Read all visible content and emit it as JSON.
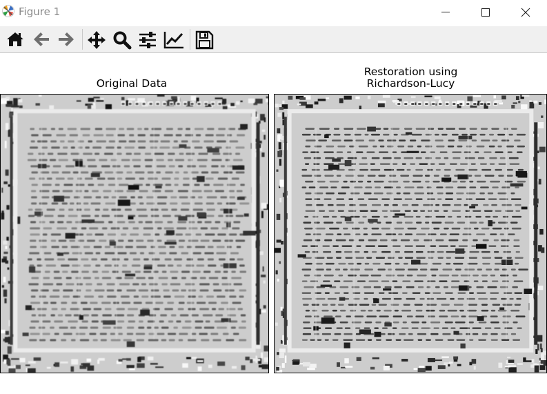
{
  "window": {
    "title": "Figure 1",
    "app_icon": "matplotlib-logo-icon",
    "controls": [
      "minimize-icon",
      "maximize-icon",
      "close-icon"
    ]
  },
  "toolbar": {
    "tools": [
      {
        "name": "Home",
        "icon": "home-icon"
      },
      {
        "name": "Back",
        "icon": "arrow-left-icon"
      },
      {
        "name": "Forward",
        "icon": "arrow-right-icon"
      },
      {
        "name": "Pan",
        "icon": "pan-move-icon"
      },
      {
        "name": "Zoom",
        "icon": "zoom-magnifier-icon"
      },
      {
        "name": "Subplots",
        "icon": "subplots-sliders-icon"
      },
      {
        "name": "Customize",
        "icon": "edit-axis-chart-icon"
      },
      {
        "name": "Save",
        "icon": "save-floppy-icon"
      }
    ]
  },
  "figure": {
    "left_title": "Original Data",
    "right_title": "Restoration using\nRichardson-Lucy",
    "colormap": "gray"
  }
}
